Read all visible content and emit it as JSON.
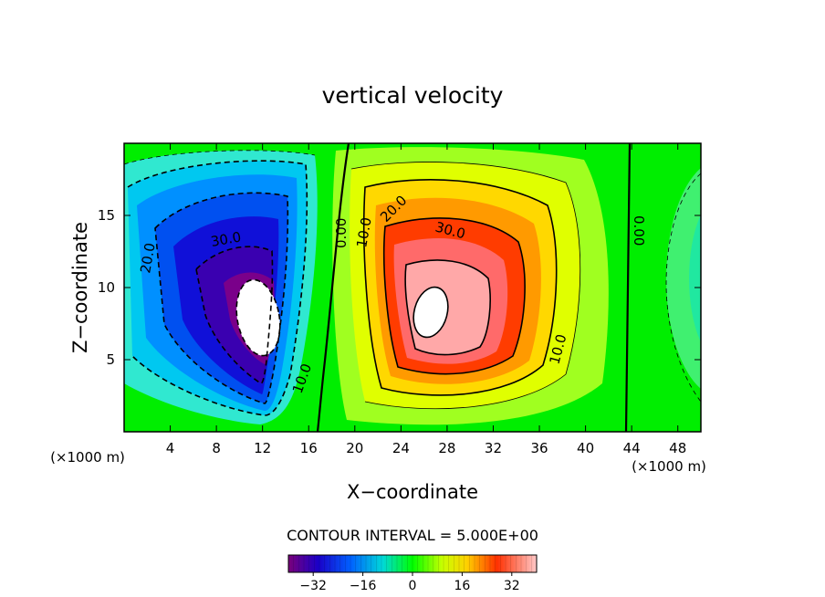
{
  "chart_data": {
    "type": "contour",
    "title": "vertical velocity",
    "xlabel": "X−coordinate",
    "ylabel": "Z−coordinate",
    "x_unit_left": "(×1000 m)",
    "x_unit_right": "(×1000 m)",
    "xlim": [
      0,
      50
    ],
    "ylim": [
      0,
      20
    ],
    "x_ticks": [
      4,
      8,
      12,
      16,
      20,
      24,
      28,
      32,
      36,
      40,
      44,
      48
    ],
    "x_tick_labels": [
      "4",
      "8",
      "12",
      "16",
      "20",
      "24",
      "28",
      "32",
      "36",
      "40",
      "44",
      "48"
    ],
    "y_ticks": [
      5,
      10,
      15
    ],
    "y_tick_labels": [
      "5",
      "10",
      "15"
    ],
    "contour_interval_label": "CONTOUR INTERVAL = 5.000E+00",
    "contour_interval": 5,
    "colorbar": {
      "range": [
        -40,
        40
      ],
      "ticks": [
        -32,
        -16,
        0,
        16,
        32
      ],
      "tick_labels": [
        "−32",
        "−16",
        "0",
        "16",
        "32"
      ]
    },
    "features": [
      {
        "type": "downdraft",
        "center_x": 11,
        "center_z": 9,
        "min_value": -40
      },
      {
        "type": "updraft",
        "center_x": 26.5,
        "center_z": 8.5,
        "max_value": 40
      }
    ],
    "contour_labels": [
      {
        "text": "20.0",
        "x": 1.8,
        "z": 12
      },
      {
        "text": "30.0",
        "x": 9,
        "z": 13.7
      },
      {
        "text": "10.0",
        "x": 15.5,
        "z": 3.8
      },
      {
        "text": "0.00",
        "x": 19,
        "z": 13.5
      },
      {
        "text": "10.0",
        "x": 20.7,
        "z": 13.8
      },
      {
        "text": "20.0",
        "x": 23.5,
        "z": 15.5
      },
      {
        "text": "30.0",
        "x": 27.5,
        "z": 14.3
      },
      {
        "text": "10.0",
        "x": 38.5,
        "z": 5.5
      },
      {
        "text": "0.00",
        "x": 44.5,
        "z": 14.5
      }
    ]
  }
}
